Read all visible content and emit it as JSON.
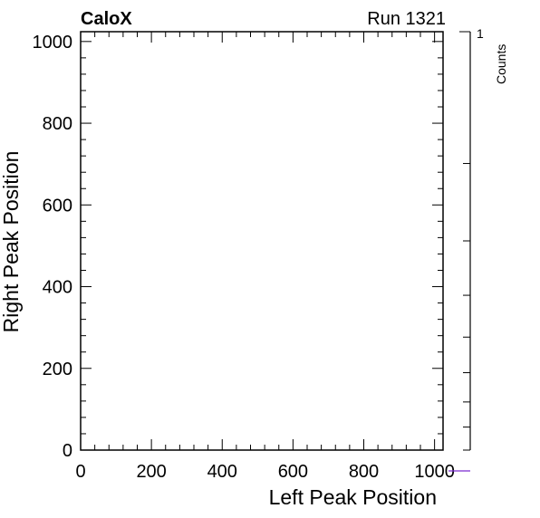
{
  "header": {
    "experiment": "CaloX",
    "run": "Run 1321"
  },
  "chart_data": {
    "type": "heatmap",
    "xlabel": "Left Peak Position",
    "ylabel": "Right Peak Position",
    "xlim": [
      0,
      1024
    ],
    "ylim": [
      0,
      1024
    ],
    "xticks": [
      0,
      200,
      400,
      600,
      800,
      1000
    ],
    "yticks": [
      0,
      200,
      400,
      600,
      800,
      1000
    ],
    "xtick_labels": [
      "0",
      "200",
      "400",
      "600",
      "800",
      "1000"
    ],
    "ytick_labels": [
      "0",
      "200",
      "400",
      "600",
      "800",
      "1000"
    ],
    "grid": false,
    "values": [],
    "colorbar": {
      "label": "Counts",
      "scale": "log",
      "tick_label": "1"
    },
    "colors": {
      "marker_line": "#7a2bd1"
    }
  }
}
